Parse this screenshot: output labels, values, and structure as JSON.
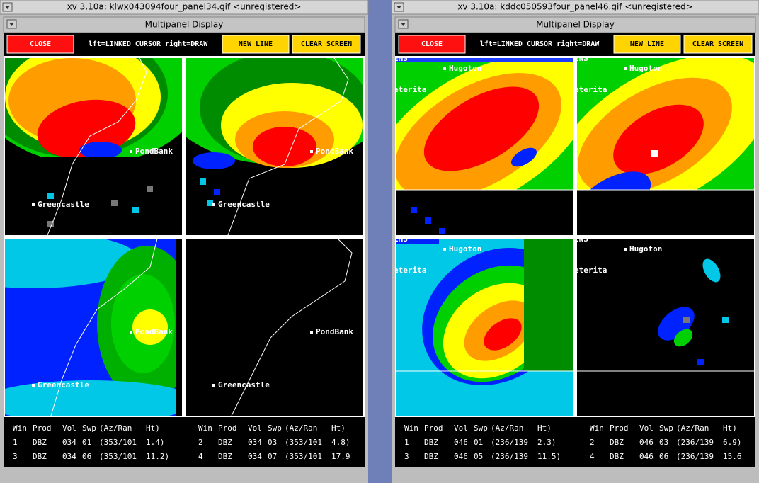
{
  "windows": [
    {
      "title": "xv 3.10a: klwx043094four_panel34.gif <unregistered>",
      "header": "Multipanel Display",
      "buttons": {
        "close": "CLOSE",
        "mode": "lft=LINKED CURSOR  right=DRAW",
        "new_line": "NEW LINE",
        "clear_screen": "CLEAR SCREEN"
      },
      "panels": [
        {
          "labels": [
            "PondBank",
            "Greencastle"
          ]
        },
        {
          "labels": [
            "PondBank",
            "Greencastle"
          ]
        },
        {
          "labels": [
            "PondBank",
            "Greencastle"
          ]
        },
        {
          "labels": [
            "PondBank",
            "Greencastle"
          ]
        }
      ],
      "table": {
        "columns": [
          "Win",
          "Prod",
          "Vol",
          "Swp",
          "(Az/Ran",
          "Ht)"
        ],
        "rows": [
          [
            "1",
            "DBZ",
            "034",
            "01",
            "(353/101",
            "1.4)"
          ],
          [
            "2",
            "DBZ",
            "034",
            "03",
            "(353/101",
            "4.8)"
          ],
          [
            "3",
            "DBZ",
            "034",
            "06",
            "(353/101",
            "11.2)"
          ],
          [
            "4",
            "DBZ",
            "034",
            "07",
            "(353/101",
            "17.9"
          ]
        ]
      }
    },
    {
      "title": "xv 3.10a: kddc050593four_panel46.gif <unregistered>",
      "header": "Multipanel Display",
      "buttons": {
        "close": "CLOSE",
        "mode": "lft=LINKED CURSOR  right=DRAW",
        "new_line": "NEW LINE",
        "clear_screen": "CLEAR SCREEN"
      },
      "panels": [
        {
          "labels": [
            "ENS",
            "Hugoton",
            "eterita"
          ]
        },
        {
          "labels": [
            "ENS",
            "Hugoton",
            "eterita"
          ]
        },
        {
          "labels": [
            "ENS",
            "Hugoton",
            "eterita"
          ]
        },
        {
          "labels": [
            "ENS",
            "Hugoton",
            "eterita"
          ]
        }
      ],
      "table": {
        "columns": [
          "Win",
          "Prod",
          "Vol",
          "Swp",
          "(Az/Ran",
          "Ht)"
        ],
        "rows": [
          [
            "1",
            "DBZ",
            "046",
            "01",
            "(236/139",
            "2.3)"
          ],
          [
            "2",
            "DBZ",
            "046",
            "03",
            "(236/139",
            "6.9)"
          ],
          [
            "3",
            "DBZ",
            "046",
            "05",
            "(236/139",
            "11.5)"
          ],
          [
            "4",
            "DBZ",
            "046",
            "06",
            "(236/139",
            "15.6"
          ]
        ]
      }
    }
  ]
}
